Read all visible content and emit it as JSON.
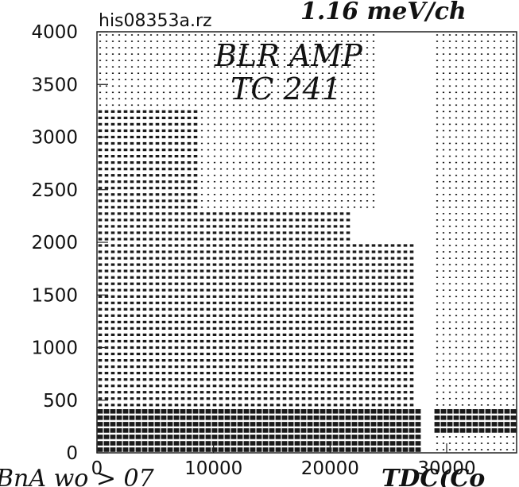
{
  "chart_data": {
    "type": "heatmap",
    "title": "his08353a.rz",
    "annotations": {
      "top_right": "1.16 meV/ch",
      "inside": [
        "BLR AMP",
        "TC 241"
      ],
      "bottom_left": "BnA  wo > 07",
      "bottom_right": "TDC(Co"
    },
    "x_ticks": [
      "0",
      "10000",
      "20000",
      "30000"
    ],
    "y_ticks": [
      "0",
      "500",
      "1000",
      "1500",
      "2000",
      "2500",
      "3000",
      "3500",
      "4000"
    ],
    "xlim": [
      0,
      36000
    ],
    "ylim": [
      0,
      4000
    ],
    "grid": false,
    "density_bands": [
      {
        "x": [
          0,
          28000
        ],
        "y": [
          0,
          450
        ],
        "level": "high"
      },
      {
        "x": [
          29000,
          36000
        ],
        "y": [
          200,
          450
        ],
        "level": "high"
      },
      {
        "x": [
          0,
          27500
        ],
        "y": [
          450,
          2000
        ],
        "level": "medium"
      },
      {
        "x": [
          0,
          9000
        ],
        "y": [
          2000,
          3300
        ],
        "level": "medium"
      },
      {
        "x": [
          9000,
          22000
        ],
        "y": [
          1600,
          2300
        ],
        "level": "medium"
      },
      {
        "x": [
          29000,
          36000
        ],
        "y": [
          0,
          4000
        ],
        "level": "low"
      },
      {
        "x": [
          0,
          24000
        ],
        "y": [
          2300,
          4000
        ],
        "level": "low"
      }
    ]
  }
}
